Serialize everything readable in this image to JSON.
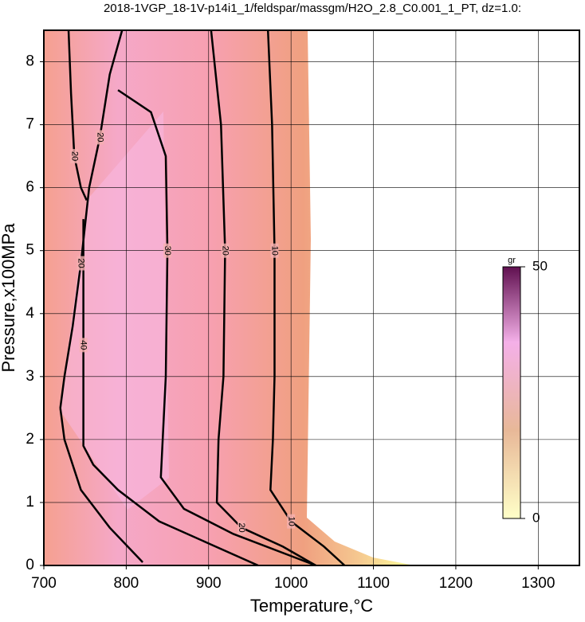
{
  "chart_data": {
    "type": "contour",
    "title": "2018-1VGP_18-1V-p14i1_1/feldspar/massgm/H2O_2.8_C0.001_1_PT, dz=1.0:",
    "xlabel": "Temperature,°C",
    "ylabel": "Pressure,x100MPa",
    "xlim": [
      700,
      1350
    ],
    "ylim": [
      0,
      8.5
    ],
    "xticks": [
      700,
      800,
      900,
      1000,
      1100,
      1200,
      1300
    ],
    "yticks": [
      0,
      1,
      2,
      3,
      4,
      5,
      6,
      7,
      8
    ],
    "grid": true,
    "contours": [
      {
        "level": 10,
        "x": [
          972,
          977,
          980,
          980,
          978,
          975,
          1000,
          1040,
          1065
        ],
        "y": [
          8.5,
          7,
          5,
          3,
          2,
          1.2,
          0.7,
          0.3,
          0
        ]
      },
      {
        "level": 20,
        "x": [
          903,
          915,
          920,
          918,
          912,
          910,
          940,
          990,
          1030
        ],
        "y": [
          8.5,
          7,
          5,
          3,
          2,
          1.0,
          0.6,
          0.3,
          0
        ]
      },
      {
        "level": 30,
        "x": [
          790,
          830,
          848,
          850,
          848,
          842,
          870,
          930,
          1000,
          1030
        ],
        "y": [
          7.55,
          7.2,
          6.5,
          5,
          3,
          1.4,
          0.9,
          0.5,
          0.15,
          0
        ]
      },
      {
        "level": 40,
        "x": [
          748,
          748,
          748,
          760,
          790,
          840,
          900,
          960
        ],
        "y": [
          5.5,
          3.5,
          1.9,
          1.6,
          1.2,
          0.7,
          0.35,
          0
        ]
      },
      {
        "level": 20,
        "x": [
          730,
          733,
          737,
          745,
          752
        ],
        "y": [
          8.5,
          7.5,
          6.5,
          6.0,
          5.8
        ]
      },
      {
        "level": 20,
        "x": [
          795,
          780,
          768,
          755,
          745,
          735,
          725,
          720
        ],
        "y": [
          8.5,
          7.8,
          6.8,
          6.0,
          4.8,
          3.8,
          3.0,
          2.5
        ]
      },
      {
        "level": 40,
        "x": [
          720,
          725,
          745,
          780,
          820
        ],
        "y": [
          2.5,
          2.0,
          1.2,
          0.6,
          0.05
        ]
      }
    ],
    "colorbar": {
      "label": "gr",
      "lim": [
        0,
        50
      ],
      "ticks": [
        0,
        50
      ]
    }
  }
}
